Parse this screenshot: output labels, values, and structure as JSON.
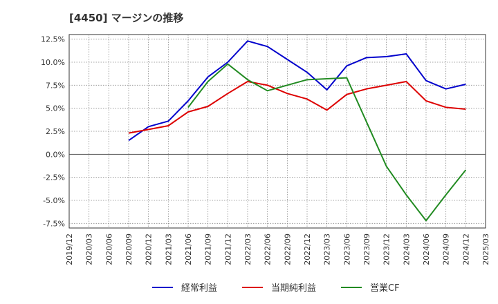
{
  "chart_data": {
    "type": "line",
    "title": "[4450]  マージンの推移",
    "x": [
      "2019/12",
      "2020/03",
      "2020/06",
      "2020/09",
      "2020/12",
      "2021/03",
      "2021/06",
      "2021/09",
      "2021/12",
      "2022/03",
      "2022/06",
      "2022/09",
      "2022/12",
      "2023/03",
      "2023/06",
      "2023/09",
      "2023/12",
      "2024/03",
      "2024/06",
      "2024/09",
      "2024/12",
      "2025/03"
    ],
    "ylim": [
      -8.0,
      13.0
    ],
    "yticks": [
      12.5,
      10.0,
      7.5,
      5.0,
      2.5,
      0.0,
      -2.5,
      -5.0,
      -7.5
    ],
    "ytick_labels": [
      "12.5%",
      "10.0%",
      "7.5%",
      "5.0%",
      "2.5%",
      "0.0%",
      "-2.5%",
      "-5.0%",
      "-7.5%"
    ],
    "grid": true,
    "legend_position": "bottom",
    "series": [
      {
        "name": "経常利益",
        "color": "#0000cc",
        "values": [
          null,
          null,
          null,
          1.5,
          3.0,
          3.6,
          5.8,
          8.4,
          10.0,
          12.3,
          11.7,
          10.3,
          8.9,
          7.0,
          9.6,
          10.5,
          10.6,
          10.9,
          8.0,
          7.1,
          7.6,
          null
        ]
      },
      {
        "name": "当期純利益",
        "color": "#dd0000",
        "values": [
          null,
          null,
          null,
          2.3,
          2.7,
          3.1,
          4.6,
          5.2,
          6.6,
          7.9,
          7.5,
          6.6,
          6.0,
          4.8,
          6.5,
          7.1,
          7.5,
          7.9,
          5.8,
          5.1,
          4.9,
          null
        ]
      },
      {
        "name": "営業CF",
        "color": "#228B22",
        "values": [
          null,
          null,
          null,
          null,
          null,
          null,
          5.1,
          7.9,
          9.8,
          8.1,
          6.9,
          7.5,
          8.1,
          8.2,
          8.3,
          3.5,
          -1.3,
          -4.4,
          -7.2,
          -4.4,
          -1.7,
          null
        ]
      }
    ]
  }
}
